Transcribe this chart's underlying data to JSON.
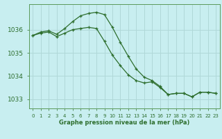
{
  "title": "Graphe pression niveau de la mer (hPa)",
  "background_color": "#c8eef0",
  "grid_color": "#b0d8d8",
  "line_color": "#2d6e2d",
  "x_labels": [
    "0",
    "1",
    "2",
    "3",
    "4",
    "5",
    "6",
    "7",
    "8",
    "9",
    "10",
    "11",
    "12",
    "13",
    "14",
    "15",
    "16",
    "17",
    "18",
    "19",
    "20",
    "21",
    "22",
    "23"
  ],
  "ylim": [
    1032.6,
    1037.1
  ],
  "yticks": [
    1033,
    1034,
    1035,
    1036
  ],
  "line1_x": [
    0,
    1,
    2,
    3,
    4,
    5,
    6,
    7,
    8,
    9,
    10,
    11,
    12,
    13,
    14,
    15,
    16,
    17,
    18,
    19,
    20,
    21,
    22,
    23
  ],
  "line1_y": [
    1035.75,
    1035.9,
    1035.95,
    1035.8,
    1036.05,
    1036.35,
    1036.6,
    1036.7,
    1036.75,
    1036.65,
    1036.1,
    1035.45,
    1034.85,
    1034.3,
    1033.95,
    1033.8,
    1033.55,
    1033.2,
    1033.25,
    1033.25,
    1033.1,
    1033.3,
    1033.3,
    1033.25
  ],
  "line2_x": [
    0,
    1,
    2,
    3,
    4,
    5,
    6,
    7,
    8,
    9,
    10,
    11,
    12,
    13,
    14,
    15,
    16,
    17,
    18,
    19,
    20,
    21,
    22,
    23
  ],
  "line2_y": [
    1035.75,
    1035.85,
    1035.9,
    1035.7,
    1035.85,
    1036.0,
    1036.05,
    1036.1,
    1036.05,
    1035.5,
    1034.9,
    1034.45,
    1034.05,
    1033.8,
    1033.7,
    1033.75,
    1033.5,
    1033.2,
    1033.25,
    1033.25,
    1033.1,
    1033.3,
    1033.3,
    1033.25
  ]
}
